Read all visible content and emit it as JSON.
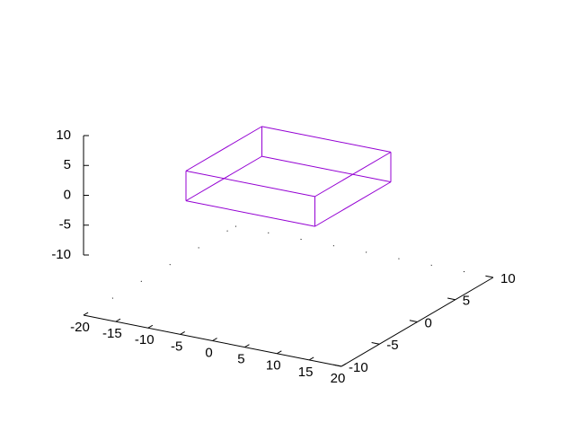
{
  "chart_data": {
    "type": "3d-box",
    "title": "",
    "xlabel": "",
    "ylabel": "",
    "zlabel": "",
    "xlim": [
      -20,
      20
    ],
    "ylim": [
      -10,
      10
    ],
    "zlim": [
      -10,
      10
    ],
    "x_ticks": [
      "-20",
      "-15",
      "-10",
      "-5",
      "0",
      "5",
      "10",
      "15",
      "20"
    ],
    "y_ticks": [
      "-10",
      "-5",
      "0",
      "5",
      "10"
    ],
    "z_ticks": [
      "-10",
      "-5",
      "0",
      "5",
      "10"
    ],
    "box": {
      "x": [
        -10,
        10
      ],
      "y": [
        -5,
        5
      ],
      "z": [
        -2.5,
        2.5
      ]
    },
    "box_color": "#9400d3",
    "grid": false,
    "legend": "none"
  }
}
